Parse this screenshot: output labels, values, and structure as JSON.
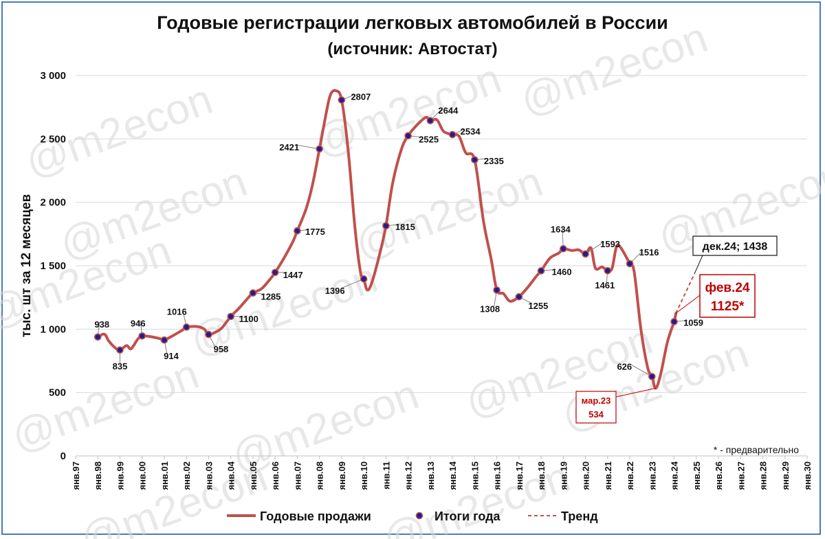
{
  "title": "Годовые регистрации легковых автомобилей в России",
  "subtitle": "(источник: Автостат)",
  "watermark": "@m2econ",
  "note": "* - предварительно",
  "colors": {
    "line": "#c0504d",
    "marker_fill": "#1f1f8f",
    "frame": "#4a7bb7",
    "callout": "#c00000"
  },
  "chart_data": {
    "type": "line",
    "ylabel": "тыс. шт за 12 месяцев",
    "ylim": [
      0,
      3000
    ],
    "yticks": [
      0,
      500,
      1000,
      1500,
      2000,
      2500,
      3000
    ],
    "ytick_labels": [
      "0",
      "500",
      "1 000",
      "1 500",
      "2 000",
      "2 500",
      "3 000"
    ],
    "xlim": [
      1997,
      2030
    ],
    "xtick_labels": [
      "янв.97",
      "янв.98",
      "янв.99",
      "янв.00",
      "янв.01",
      "янв.02",
      "янв.03",
      "янв.04",
      "янв.05",
      "янв.06",
      "янв.07",
      "янв.08",
      "янв.09",
      "янв.10",
      "янв.11",
      "янв.12",
      "янв.13",
      "янв.14",
      "янв.15",
      "янв.16",
      "янв.17",
      "янв.18",
      "янв.19",
      "янв.20",
      "янв.21",
      "янв.22",
      "янв.23",
      "янв.24",
      "янв.25",
      "янв.26",
      "янв.27",
      "янв.28",
      "янв.29",
      "янв.30"
    ],
    "series": [
      {
        "name": "Годовые продажи",
        "style": "solid",
        "points": [
          [
            1998.0,
            938
          ],
          [
            1998.3,
            960
          ],
          [
            1998.5,
            905
          ],
          [
            1998.8,
            850
          ],
          [
            1999.0,
            835
          ],
          [
            1999.3,
            870
          ],
          [
            1999.5,
            845
          ],
          [
            1999.8,
            920
          ],
          [
            2000.0,
            946
          ],
          [
            2000.4,
            940
          ],
          [
            2000.8,
            925
          ],
          [
            2001.0,
            914
          ],
          [
            2001.4,
            950
          ],
          [
            2001.8,
            990
          ],
          [
            2002.0,
            1016
          ],
          [
            2002.5,
            1020
          ],
          [
            2002.8,
            1000
          ],
          [
            2003.0,
            958
          ],
          [
            2003.3,
            975
          ],
          [
            2003.6,
            1010
          ],
          [
            2004.0,
            1100
          ],
          [
            2004.4,
            1170
          ],
          [
            2004.8,
            1250
          ],
          [
            2005.0,
            1285
          ],
          [
            2005.4,
            1320
          ],
          [
            2005.8,
            1400
          ],
          [
            2006.0,
            1447
          ],
          [
            2006.4,
            1560
          ],
          [
            2006.8,
            1690
          ],
          [
            2007.0,
            1775
          ],
          [
            2007.4,
            1950
          ],
          [
            2007.7,
            2150
          ],
          [
            2008.0,
            2421
          ],
          [
            2008.3,
            2700
          ],
          [
            2008.5,
            2850
          ],
          [
            2008.75,
            2880
          ],
          [
            2009.0,
            2807
          ],
          [
            2009.3,
            2400
          ],
          [
            2009.6,
            1800
          ],
          [
            2009.85,
            1450
          ],
          [
            2010.0,
            1396
          ],
          [
            2010.15,
            1310
          ],
          [
            2010.35,
            1360
          ],
          [
            2010.7,
            1580
          ],
          [
            2011.0,
            1815
          ],
          [
            2011.3,
            2150
          ],
          [
            2011.7,
            2420
          ],
          [
            2012.0,
            2525
          ],
          [
            2012.4,
            2610
          ],
          [
            2012.8,
            2670
          ],
          [
            2013.0,
            2644
          ],
          [
            2013.3,
            2650
          ],
          [
            2013.6,
            2560
          ],
          [
            2014.0,
            2534
          ],
          [
            2014.3,
            2520
          ],
          [
            2014.6,
            2390
          ],
          [
            2015.0,
            2335
          ],
          [
            2015.4,
            1850
          ],
          [
            2015.75,
            1550
          ],
          [
            2016.0,
            1308
          ],
          [
            2016.3,
            1280
          ],
          [
            2016.6,
            1220
          ],
          [
            2017.0,
            1255
          ],
          [
            2017.4,
            1330
          ],
          [
            2017.8,
            1420
          ],
          [
            2018.0,
            1460
          ],
          [
            2018.4,
            1560
          ],
          [
            2018.8,
            1600
          ],
          [
            2019.0,
            1634
          ],
          [
            2019.4,
            1620
          ],
          [
            2019.7,
            1625
          ],
          [
            2020.0,
            1593
          ],
          [
            2020.25,
            1640
          ],
          [
            2020.45,
            1480
          ],
          [
            2020.75,
            1490
          ],
          [
            2021.0,
            1461
          ],
          [
            2021.2,
            1480
          ],
          [
            2021.4,
            1650
          ],
          [
            2021.6,
            1640
          ],
          [
            2022.0,
            1516
          ],
          [
            2022.2,
            1450
          ],
          [
            2022.5,
            1000
          ],
          [
            2022.8,
            700
          ],
          [
            2023.0,
            626
          ],
          [
            2023.17,
            534
          ],
          [
            2023.4,
            650
          ],
          [
            2023.7,
            900
          ],
          [
            2024.0,
            1059
          ],
          [
            2024.08,
            1125
          ]
        ]
      },
      {
        "name": "Итоги года",
        "style": "markers",
        "points": [
          [
            1998,
            938
          ],
          [
            1999,
            835
          ],
          [
            2000,
            946
          ],
          [
            2001,
            914
          ],
          [
            2002,
            1016
          ],
          [
            2003,
            958
          ],
          [
            2004,
            1100
          ],
          [
            2005,
            1285
          ],
          [
            2006,
            1447
          ],
          [
            2007,
            1775
          ],
          [
            2008,
            2421
          ],
          [
            2009,
            2807
          ],
          [
            2010,
            1396
          ],
          [
            2011,
            1815
          ],
          [
            2012,
            2525
          ],
          [
            2013,
            2644
          ],
          [
            2014,
            2534
          ],
          [
            2015,
            2335
          ],
          [
            2016,
            1308
          ],
          [
            2017,
            1255
          ],
          [
            2018,
            1460
          ],
          [
            2019,
            1634
          ],
          [
            2020,
            1593
          ],
          [
            2021,
            1461
          ],
          [
            2022,
            1516
          ],
          [
            2023,
            626
          ],
          [
            2024,
            1059
          ]
        ]
      },
      {
        "name": "Тренд",
        "style": "dashed",
        "points": [
          [
            2024.08,
            1125
          ],
          [
            2024.92,
            1438
          ]
        ]
      }
    ],
    "data_labels": [
      {
        "x": 1998,
        "y": 938,
        "text": "938"
      },
      {
        "x": 1999,
        "y": 835,
        "text": "835"
      },
      {
        "x": 2000,
        "y": 946,
        "text": "946"
      },
      {
        "x": 2001,
        "y": 914,
        "text": "914"
      },
      {
        "x": 2002,
        "y": 1016,
        "text": "1016"
      },
      {
        "x": 2003,
        "y": 958,
        "text": "958"
      },
      {
        "x": 2004,
        "y": 1100,
        "text": "1100"
      },
      {
        "x": 2005,
        "y": 1285,
        "text": "1285"
      },
      {
        "x": 2006,
        "y": 1447,
        "text": "1447"
      },
      {
        "x": 2007,
        "y": 1775,
        "text": "1775"
      },
      {
        "x": 2008,
        "y": 2421,
        "text": "2421"
      },
      {
        "x": 2009,
        "y": 2807,
        "text": "2807"
      },
      {
        "x": 2010,
        "y": 1396,
        "text": "1396"
      },
      {
        "x": 2011,
        "y": 1815,
        "text": "1815"
      },
      {
        "x": 2012,
        "y": 2525,
        "text": "2525"
      },
      {
        "x": 2013,
        "y": 2644,
        "text": "2644"
      },
      {
        "x": 2014,
        "y": 2534,
        "text": "2534"
      },
      {
        "x": 2015,
        "y": 2335,
        "text": "2335"
      },
      {
        "x": 2016,
        "y": 1308,
        "text": "1308"
      },
      {
        "x": 2017,
        "y": 1255,
        "text": "1255"
      },
      {
        "x": 2018,
        "y": 1460,
        "text": "1460"
      },
      {
        "x": 2019,
        "y": 1634,
        "text": "1634"
      },
      {
        "x": 2020,
        "y": 1593,
        "text": "1593"
      },
      {
        "x": 2021,
        "y": 1461,
        "text": "1461"
      },
      {
        "x": 2022,
        "y": 1516,
        "text": "1516"
      },
      {
        "x": 2023,
        "y": 626,
        "text": "626"
      },
      {
        "x": 2024,
        "y": 1059,
        "text": "1059"
      }
    ],
    "annotations": [
      {
        "x": 2023.17,
        "y": 534,
        "lines": [
          "мар.23",
          "534"
        ],
        "style": "red-box"
      },
      {
        "x": 2024.08,
        "y": 1125,
        "lines": [
          "фев.24",
          "1125*"
        ],
        "style": "red-box-large"
      },
      {
        "x": 2024.92,
        "y": 1438,
        "lines": [
          "дек.24; 1438"
        ],
        "style": "black-box"
      }
    ],
    "legend": {
      "position": "bottom",
      "items": [
        {
          "label": "Годовые продажи",
          "kind": "line"
        },
        {
          "label": "Итоги года",
          "kind": "marker"
        },
        {
          "label": "Тренд",
          "kind": "dashed"
        }
      ]
    },
    "grid": true
  }
}
